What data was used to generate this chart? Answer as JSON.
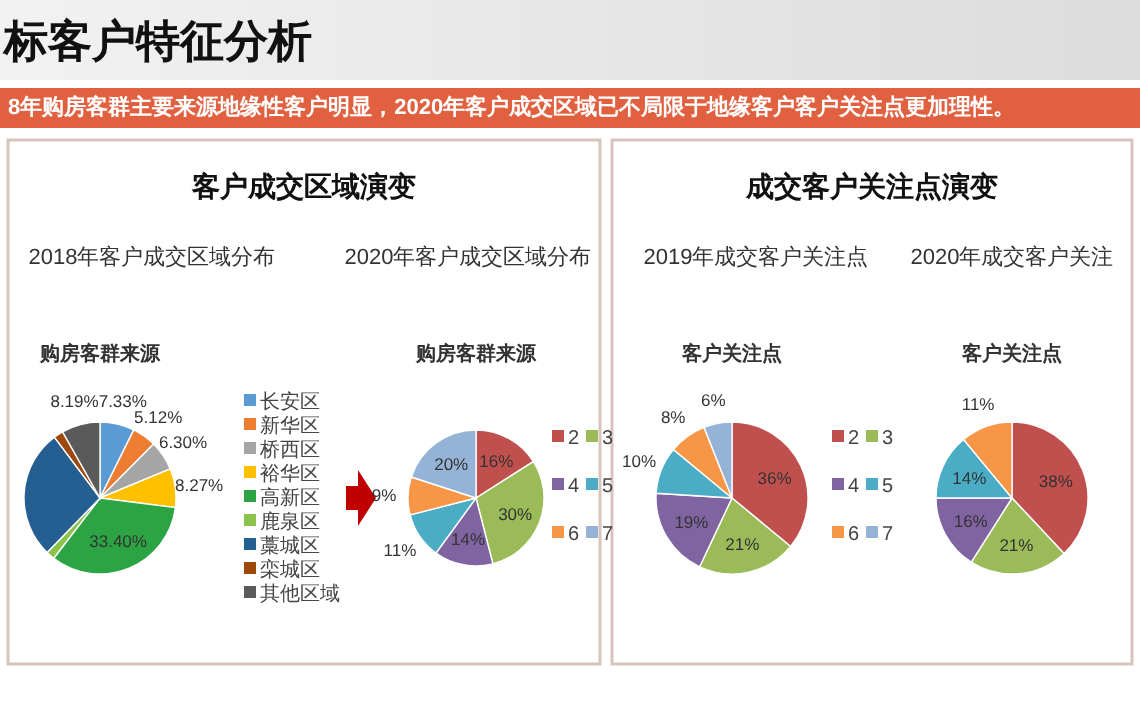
{
  "chart_data": [
    {
      "type": "other",
      "title": "标客户特征分析",
      "subtitle": "8年购房客群主要来源地缘性客户明显，2020年客户成交区域已不局限于地缘客户客户关注点更加理性。"
    },
    {
      "type": "pie",
      "title": "2018年客户成交区域分布",
      "subtitle": "购房客群来源",
      "annotations": [
        "客户成交区域演变"
      ],
      "legend": "right",
      "categories": [
        "长安区",
        "新华区",
        "桥西区",
        "裕华区",
        "高新区",
        "鹿泉区",
        "藁城区",
        "栾城区",
        "其他区域"
      ],
      "values": [
        7.33,
        5.12,
        6.3,
        8.27,
        33.4,
        1.84,
        27.5,
        2.05,
        8.19
      ],
      "colors": [
        "#5b9bd5",
        "#ed7d31",
        "#a5a5a5",
        "#ffc000",
        "#2ca444",
        "#8bc34a",
        "#255e91",
        "#9e480e",
        "#5a5a5a"
      ],
      "value_labels": [
        "7.33%",
        "5.12%",
        "6.30%",
        "8.27%",
        "33.40%",
        null,
        null,
        null,
        "8.19%"
      ]
    },
    {
      "type": "pie",
      "title": "2020年客户成交区域分布",
      "subtitle": "购房客群来源",
      "legend": "right",
      "categories": [
        "2",
        "3",
        "4",
        "5",
        "6",
        "7"
      ],
      "values": [
        16,
        30,
        14,
        11,
        9,
        20
      ],
      "colors": [
        "#c0504d",
        "#9bbb59",
        "#8064a2",
        "#4bacc6",
        "#f79646",
        "#95b3d7"
      ],
      "value_labels": [
        "16%",
        "30%",
        "14%",
        "11%",
        "9%",
        "20%"
      ]
    },
    {
      "type": "pie",
      "title": "2019年成交客户关注点",
      "subtitle": "客户关注点",
      "annotations": [
        "成交客户关注点演变"
      ],
      "legend": "right",
      "categories": [
        "2",
        "3",
        "4",
        "5",
        "6",
        "7"
      ],
      "values": [
        36,
        21,
        19,
        10,
        8,
        6
      ],
      "colors": [
        "#c0504d",
        "#9bbb59",
        "#8064a2",
        "#4bacc6",
        "#f79646",
        "#95b3d7"
      ],
      "value_labels": [
        "36%",
        "21%",
        "19%",
        "10%",
        "8%",
        "6%"
      ]
    },
    {
      "type": "pie",
      "title": "2020年成交客户关注",
      "subtitle": "客户关注点",
      "categories": [
        null,
        null,
        null,
        null,
        null
      ],
      "values": [
        38,
        21,
        16,
        14,
        11
      ],
      "colors": [
        "#c0504d",
        "#9bbb59",
        "#8064a2",
        "#4bacc6",
        "#f79646"
      ],
      "value_labels": [
        "38%",
        "21%",
        "16%",
        "14%",
        "11%"
      ]
    }
  ]
}
